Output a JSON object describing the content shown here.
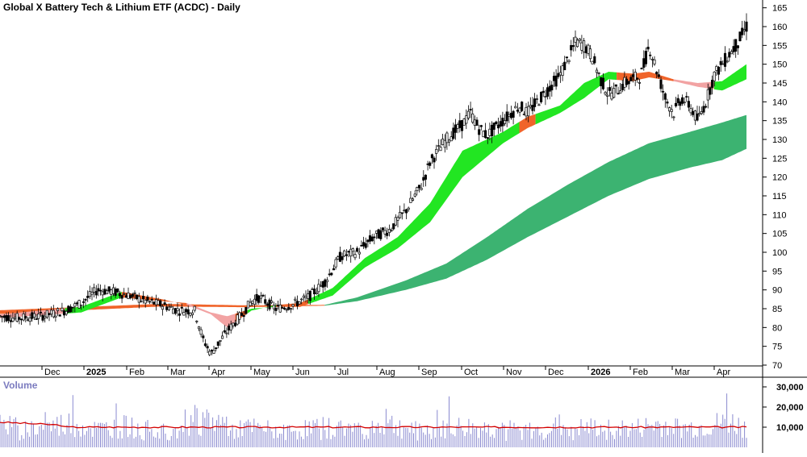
{
  "colors": {
    "background": "#ffffff",
    "axis": "#000000",
    "candle_up": "#ffffff",
    "candle_down": "#000000",
    "band_short_up": "#22e622",
    "band_short_down": "#f0642a",
    "band_short_weak": "#f2a3a3",
    "band_long": "#3cb371",
    "band_long_early": "#f0642a",
    "volume_bar": "#8a8ad0",
    "volume_ma": "#d40000",
    "volume_title": "#7b7bbf"
  },
  "chart_data": [
    {
      "type": "candlestick",
      "title": "Global X Battery Tech & Lithium ETF (ACDC) - Daily",
      "y_ticks": [
        70,
        75,
        80,
        85,
        90,
        95,
        100,
        105,
        110,
        115,
        120,
        125,
        130,
        135,
        140,
        145,
        150,
        155,
        160,
        165
      ],
      "ylim": [
        70,
        166
      ],
      "x_ticks": [
        "Dec",
        "2025",
        "Feb",
        "Mar",
        "Apr",
        "May",
        "Jun",
        "Jul",
        "Aug",
        "Sep",
        "Oct",
        "Nov",
        "Dec",
        "2026",
        "Feb",
        "Mar",
        "Apr"
      ],
      "grid": false,
      "price_path": [
        [
          0,
          83.0
        ],
        [
          2,
          82.5
        ],
        [
          5,
          83.0
        ],
        [
          8,
          84.5
        ],
        [
          10,
          86.5
        ],
        [
          12,
          90.0
        ],
        [
          14,
          89.5
        ],
        [
          16,
          88.5
        ],
        [
          18,
          87.0
        ],
        [
          20,
          86.0
        ],
        [
          22,
          84.5
        ],
        [
          24,
          84.5
        ],
        [
          25,
          77.0
        ],
        [
          26,
          73.0
        ],
        [
          27,
          76.0
        ],
        [
          28,
          79.0
        ],
        [
          30,
          84.0
        ],
        [
          31,
          87.0
        ],
        [
          32,
          88.0
        ],
        [
          34,
          85.0
        ],
        [
          36,
          86.0
        ],
        [
          38,
          88.0
        ],
        [
          40,
          92.0
        ],
        [
          42,
          99.0
        ],
        [
          44,
          100.0
        ],
        [
          46,
          104.0
        ],
        [
          48,
          106.0
        ],
        [
          50,
          111.0
        ],
        [
          52,
          118.0
        ],
        [
          53,
          124.0
        ],
        [
          55,
          130.0
        ],
        [
          57,
          134.0
        ],
        [
          58,
          137.0
        ],
        [
          59,
          133.0
        ],
        [
          60,
          131.0
        ],
        [
          62,
          135.0
        ],
        [
          64,
          139.0
        ],
        [
          65,
          137.0
        ],
        [
          67,
          142.0
        ],
        [
          69,
          147.0
        ],
        [
          71,
          156.0
        ],
        [
          72,
          155.0
        ],
        [
          73,
          152.0
        ],
        [
          74,
          146.0
        ],
        [
          75,
          142.0
        ],
        [
          76,
          143.0
        ],
        [
          77,
          145.0
        ],
        [
          78,
          146.0
        ],
        [
          79,
          147.0
        ],
        [
          80,
          155.0
        ],
        [
          81,
          148.0
        ],
        [
          82,
          141.0
        ],
        [
          83,
          137.0
        ],
        [
          84,
          141.0
        ],
        [
          85,
          139.0
        ],
        [
          86,
          135.0
        ],
        [
          87,
          140.0
        ],
        [
          88,
          147.0
        ],
        [
          89,
          150.0
        ],
        [
          90,
          153.0
        ],
        [
          91,
          156.0
        ],
        [
          92,
          160.0
        ]
      ],
      "bands": {
        "short_term_top": [
          [
            0,
            83.5
          ],
          [
            10,
            85.5
          ],
          [
            15,
            89.5
          ],
          [
            20,
            87.5
          ],
          [
            23,
            86.0
          ],
          [
            26,
            83.5
          ],
          [
            28,
            80.0
          ],
          [
            31,
            84.5
          ],
          [
            34,
            86.0
          ],
          [
            37,
            86.5
          ],
          [
            41,
            90.5
          ],
          [
            45,
            98.5
          ],
          [
            49,
            104.0
          ],
          [
            53,
            113.0
          ],
          [
            57,
            127.0
          ],
          [
            62,
            132.0
          ],
          [
            65,
            136.0
          ],
          [
            69,
            139.0
          ],
          [
            72,
            145.0
          ],
          [
            75,
            148.0
          ],
          [
            78,
            147.5
          ],
          [
            80,
            148.0
          ],
          [
            83,
            146.0
          ],
          [
            86,
            145.0
          ],
          [
            89,
            145.5
          ],
          [
            92,
            150.0
          ]
        ],
        "short_term_bottom": [
          [
            0,
            82.5
          ],
          [
            10,
            84.0
          ],
          [
            15,
            88.0
          ],
          [
            20,
            87.0
          ],
          [
            23,
            86.5
          ],
          [
            26,
            84.0
          ],
          [
            28,
            83.0
          ],
          [
            31,
            85.0
          ],
          [
            34,
            85.5
          ],
          [
            37,
            85.5
          ],
          [
            41,
            88.5
          ],
          [
            45,
            96.0
          ],
          [
            49,
            101.0
          ],
          [
            53,
            108.0
          ],
          [
            57,
            120.0
          ],
          [
            62,
            129.0
          ],
          [
            65,
            133.0
          ],
          [
            69,
            137.0
          ],
          [
            72,
            141.0
          ],
          [
            75,
            146.0
          ],
          [
            78,
            145.5
          ],
          [
            80,
            146.5
          ],
          [
            83,
            145.5
          ],
          [
            86,
            144.0
          ],
          [
            89,
            143.0
          ],
          [
            92,
            146.0
          ]
        ],
        "long_term_top": [
          [
            40,
            86.0
          ],
          [
            44,
            88.0
          ],
          [
            50,
            92.5
          ],
          [
            55,
            97.0
          ],
          [
            60,
            104.0
          ],
          [
            65,
            111.5
          ],
          [
            70,
            118.0
          ],
          [
            75,
            124.0
          ],
          [
            80,
            129.0
          ],
          [
            85,
            132.0
          ],
          [
            89,
            134.5
          ],
          [
            92,
            136.5
          ]
        ],
        "long_term_bottom": [
          [
            40,
            85.8
          ],
          [
            44,
            87.0
          ],
          [
            50,
            90.0
          ],
          [
            55,
            93.0
          ],
          [
            60,
            98.0
          ],
          [
            65,
            104.0
          ],
          [
            70,
            109.5
          ],
          [
            75,
            115.0
          ],
          [
            80,
            119.5
          ],
          [
            85,
            122.5
          ],
          [
            89,
            124.5
          ],
          [
            92,
            127.5
          ]
        ]
      }
    },
    {
      "type": "bar",
      "title": "Volume",
      "y_ticks": [
        "10,000",
        "20,000",
        "30,000"
      ],
      "y_tick_values": [
        10000,
        20000,
        30000
      ],
      "ylim": [
        0,
        34000
      ],
      "ma_level": 10000,
      "volume_anchor_values": [
        [
          0,
          11000
        ],
        [
          3,
          9500
        ],
        [
          6,
          10500
        ],
        [
          9,
          12500
        ],
        [
          12,
          9000
        ],
        [
          15,
          11000
        ],
        [
          18,
          8500
        ],
        [
          21,
          10000
        ],
        [
          24,
          15500
        ],
        [
          27,
          13000
        ],
        [
          30,
          10000
        ],
        [
          33,
          9000
        ],
        [
          36,
          8000
        ],
        [
          39,
          10500
        ],
        [
          42,
          9500
        ],
        [
          45,
          10000
        ],
        [
          48,
          12000
        ],
        [
          51,
          9000
        ],
        [
          54,
          8500
        ],
        [
          57,
          10500
        ],
        [
          60,
          9500
        ],
        [
          63,
          9000
        ],
        [
          66,
          8000
        ],
        [
          69,
          11000
        ],
        [
          72,
          9500
        ],
        [
          75,
          10000
        ],
        [
          78,
          9000
        ],
        [
          81,
          11500
        ],
        [
          84,
          9500
        ],
        [
          87,
          10500
        ],
        [
          90,
          12500
        ],
        [
          92,
          9500
        ]
      ]
    }
  ]
}
